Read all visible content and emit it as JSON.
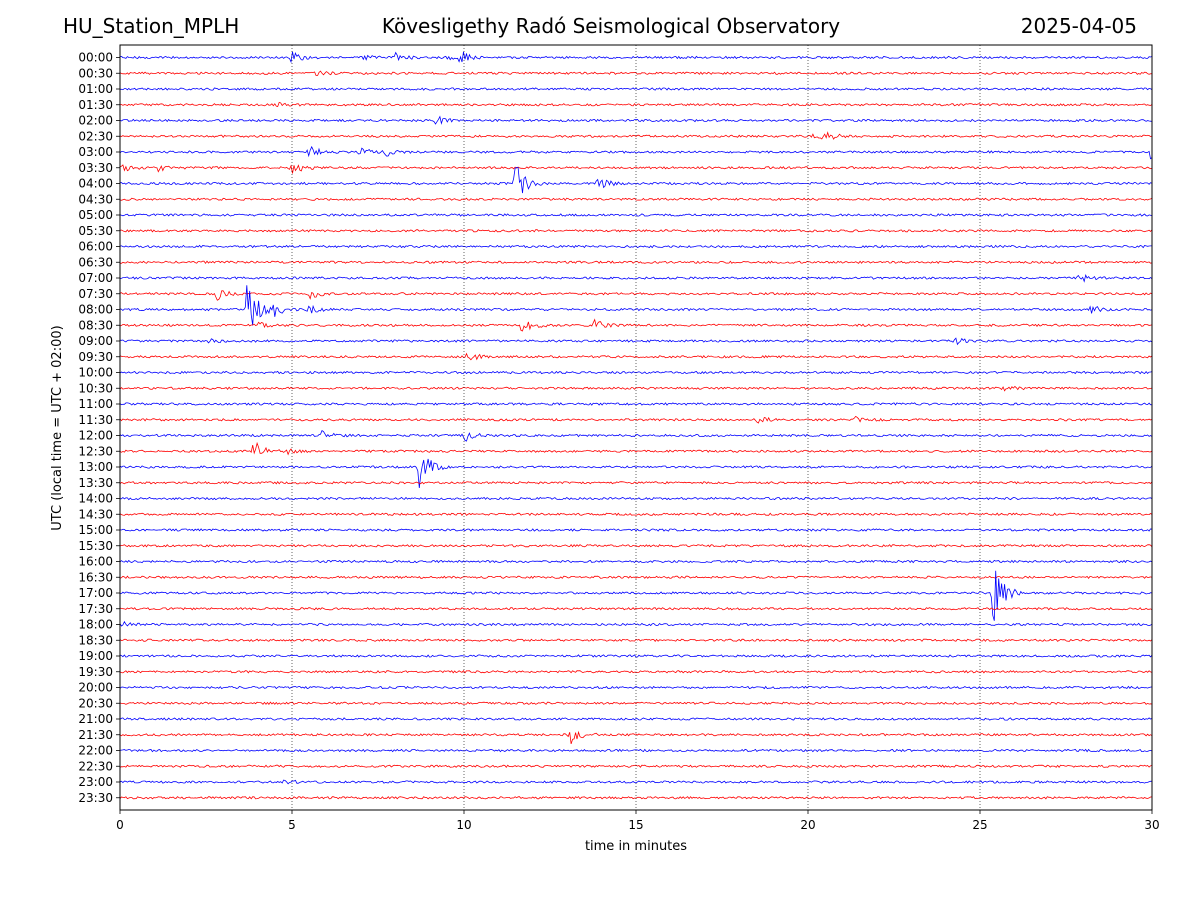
{
  "header": {
    "station": "HU_Station_MPLH",
    "observatory": "Kövesligethy Radó Seismological Observatory",
    "date": "2025-04-05"
  },
  "chart_data": {
    "type": "line",
    "title": "Kövesligethy Radó Seismological Observatory",
    "xlabel": "time in minutes",
    "ylabel": "UTC (local time = UTC + 02:00)",
    "xlim": [
      0,
      30
    ],
    "x_ticks": [
      "0",
      "5",
      "10",
      "15",
      "20",
      "25",
      "30"
    ],
    "x_grid": true,
    "row_labels": [
      "00:00",
      "00:30",
      "01:00",
      "01:30",
      "02:00",
      "02:30",
      "03:00",
      "03:30",
      "04:00",
      "04:30",
      "05:00",
      "05:30",
      "06:00",
      "06:30",
      "07:00",
      "07:30",
      "08:00",
      "08:30",
      "09:00",
      "09:30",
      "10:00",
      "10:30",
      "11:00",
      "11:30",
      "12:00",
      "12:30",
      "13:00",
      "13:30",
      "14:00",
      "14:30",
      "15:00",
      "15:30",
      "16:00",
      "16:30",
      "17:00",
      "17:30",
      "18:00",
      "18:30",
      "19:00",
      "19:30",
      "20:00",
      "20:30",
      "21:00",
      "21:30",
      "22:00",
      "22:30",
      "23:00",
      "23:30"
    ],
    "colors": {
      "even_rows": "#0000ff",
      "odd_rows": "#ff0000"
    },
    "events": [
      {
        "row": 0,
        "minute": 5.0,
        "amp": 5
      },
      {
        "row": 0,
        "minute": 8.0,
        "amp": 5
      },
      {
        "row": 0,
        "minute": 9.9,
        "amp": 6
      },
      {
        "row": 0,
        "minute": 7.1,
        "amp": 2
      },
      {
        "row": 0,
        "minute": 9.5,
        "amp": 3
      },
      {
        "row": 1,
        "minute": 5.7,
        "amp": 2
      },
      {
        "row": 3,
        "minute": 4.6,
        "amp": 2
      },
      {
        "row": 4,
        "minute": 9.2,
        "amp": 5
      },
      {
        "row": 5,
        "minute": 20.2,
        "amp": 4
      },
      {
        "row": 5,
        "minute": 20.6,
        "amp": 3
      },
      {
        "row": 6,
        "minute": 5.5,
        "amp": 8
      },
      {
        "row": 6,
        "minute": 7.0,
        "amp": 4
      },
      {
        "row": 6,
        "minute": 7.7,
        "amp": 4
      },
      {
        "row": 6,
        "minute": 30.0,
        "amp": 14
      },
      {
        "row": 7,
        "minute": 0.1,
        "amp": 3
      },
      {
        "row": 7,
        "minute": 1.1,
        "amp": 3
      },
      {
        "row": 7,
        "minute": 5.0,
        "amp": 7
      },
      {
        "row": 8,
        "minute": 11.5,
        "amp": 20
      },
      {
        "row": 8,
        "minute": 13.9,
        "amp": 6
      },
      {
        "row": 14,
        "minute": 27.9,
        "amp": 4
      },
      {
        "row": 15,
        "minute": 2.8,
        "amp": 7
      },
      {
        "row": 15,
        "minute": 5.5,
        "amp": 5
      },
      {
        "row": 16,
        "minute": 3.7,
        "amp": 30
      },
      {
        "row": 16,
        "minute": 4.5,
        "amp": 6
      },
      {
        "row": 16,
        "minute": 5.5,
        "amp": 4
      },
      {
        "row": 16,
        "minute": 28.2,
        "amp": 4
      },
      {
        "row": 17,
        "minute": 11.7,
        "amp": 9
      },
      {
        "row": 17,
        "minute": 13.8,
        "amp": 6
      },
      {
        "row": 17,
        "minute": 4.0,
        "amp": 3
      },
      {
        "row": 18,
        "minute": 24.2,
        "amp": 4
      },
      {
        "row": 18,
        "minute": 2.6,
        "amp": 2
      },
      {
        "row": 19,
        "minute": 10.1,
        "amp": 5
      },
      {
        "row": 21,
        "minute": 25.7,
        "amp": 3
      },
      {
        "row": 23,
        "minute": 18.5,
        "amp": 4
      },
      {
        "row": 23,
        "minute": 21.4,
        "amp": 3
      },
      {
        "row": 24,
        "minute": 5.9,
        "amp": 6
      },
      {
        "row": 24,
        "minute": 10.0,
        "amp": 6
      },
      {
        "row": 25,
        "minute": 3.9,
        "amp": 11
      },
      {
        "row": 25,
        "minute": 4.8,
        "amp": 3
      },
      {
        "row": 26,
        "minute": 8.7,
        "amp": 24
      },
      {
        "row": 34,
        "minute": 25.4,
        "amp": 34
      },
      {
        "row": 36,
        "minute": 0.1,
        "amp": 3
      },
      {
        "row": 43,
        "minute": 13.1,
        "amp": 10
      },
      {
        "row": 46,
        "minute": 4.8,
        "amp": 2
      }
    ]
  }
}
